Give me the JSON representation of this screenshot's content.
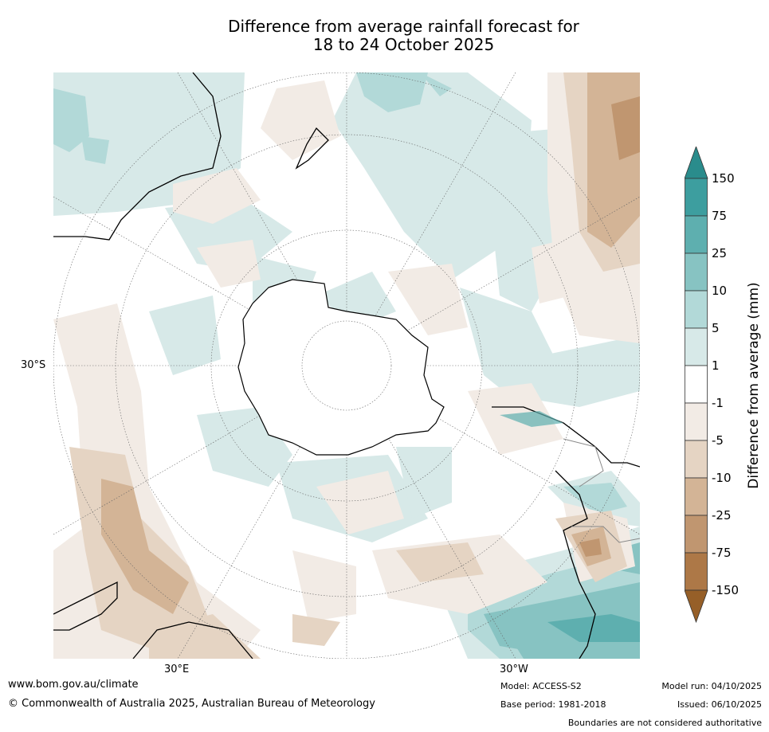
{
  "title": {
    "line1": "Difference from average rainfall forecast for",
    "line2": "18 to 24 October 2025"
  },
  "map": {
    "projection": "south-polar-stereographic",
    "lat_label": "30°S",
    "lon_labels": [
      "30°E",
      "30°W"
    ]
  },
  "colorbar": {
    "title": "Difference from average (mm)",
    "ticks": [
      "150",
      "75",
      "25",
      "10",
      "5",
      "1",
      "-1",
      "-5",
      "-10",
      "-25",
      "-75",
      "-150"
    ],
    "colors": [
      "#2a8c8c",
      "#3d9e9f",
      "#5eafaf",
      "#87c3c2",
      "#b2d9d8",
      "#d7e9e8",
      "#ffffff",
      "#f2ebe5",
      "#e5d4c3",
      "#d3b496",
      "#c09670",
      "#ad7847",
      "#965f28"
    ]
  },
  "footer": {
    "website": "www.bom.gov.au/climate",
    "copyright": "© Commonwealth of Australia 2025, Australian Bureau of Meteorology",
    "model": "Model: ACCESS-S2",
    "base_period": "Base period: 1981-2018",
    "model_run": "Model run: 04/10/2025",
    "issued": "Issued: 06/10/2025",
    "disclaimer": "Boundaries are not considered authoritative"
  }
}
